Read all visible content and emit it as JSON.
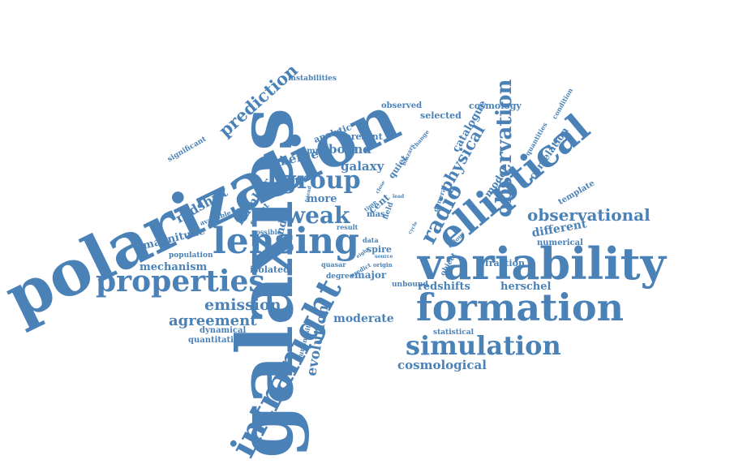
{
  "colors": {
    "word": "#4a82b8",
    "background": "#ffffff"
  },
  "words": [
    "galaxies",
    "polarization",
    "variability",
    "formation",
    "lensing",
    "elliptical",
    "properties",
    "observation",
    "intranight",
    "simulation",
    "group",
    "weak",
    "observational",
    "radio",
    "emission",
    "physical",
    "prediction",
    "agreement",
    "cosmological",
    "moderate",
    "evolution",
    "redshift",
    "mechanism",
    "magnitude",
    "different",
    "number",
    "merger",
    "bound",
    "galaxy",
    "redshifts",
    "herschel",
    "more",
    "catalogue",
    "correlation",
    "cosmology",
    "selected",
    "observed",
    "present",
    "analytic",
    "sample",
    "quiet",
    "model",
    "fraction",
    "template",
    "numerical",
    "isolated",
    "major",
    "degree",
    "quasar",
    "unbound",
    "dynamical",
    "quantitative",
    "spire",
    "result",
    "count",
    "band",
    "mas",
    "cent",
    "field",
    "object",
    "statistical",
    "instabilities",
    "significant",
    "population",
    "available",
    "possible",
    "luminosity",
    "quantities",
    "condition",
    "data",
    "time",
    "origin",
    "general",
    "colour",
    "source",
    "predict",
    "change",
    "blazars",
    "friend",
    "eight",
    "close",
    "cycle",
    "lead"
  ]
}
